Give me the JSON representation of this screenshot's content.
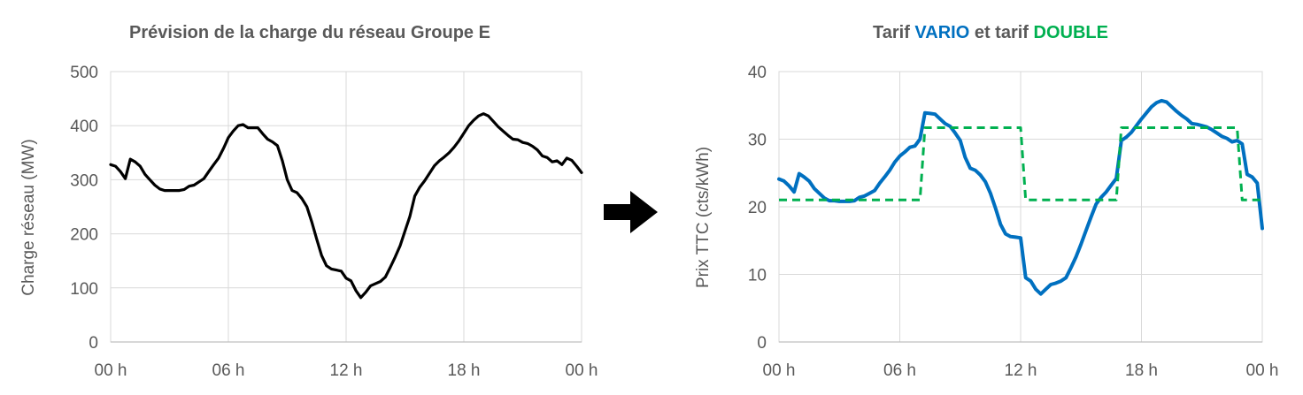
{
  "colors": {
    "load": "#000000",
    "vario": "#0070c0",
    "double": "#00b050",
    "text": "#595959",
    "arrow": "#000000"
  },
  "arrow_icon": "right-arrow-icon",
  "chart_data": [
    {
      "type": "line",
      "title": "Prévision de la charge du réseau Groupe E",
      "xlabel": "",
      "ylabel": "Charge réseau (MW)",
      "xlim": [
        0,
        24
      ],
      "ylim": [
        0,
        500
      ],
      "xticks": [
        0,
        6,
        12,
        18,
        24
      ],
      "xtick_labels": [
        "00 h",
        "06 h",
        "12 h",
        "18 h",
        "00 h"
      ],
      "yticks": [
        0,
        100,
        200,
        300,
        400,
        500
      ],
      "ytick_labels": [
        "0",
        "100",
        "200",
        "300",
        "400",
        "500"
      ],
      "series": [
        {
          "x": [
            0,
            0.25,
            0.5,
            0.75,
            1,
            1.25,
            1.5,
            1.75,
            2,
            2.25,
            2.5,
            2.75,
            3,
            3.25,
            3.5,
            3.75,
            4,
            4.25,
            4.5,
            4.75,
            5,
            5.25,
            5.5,
            5.75,
            6,
            6.25,
            6.5,
            6.75,
            7,
            7.25,
            7.5,
            7.75,
            8,
            8.25,
            8.5,
            8.75,
            9,
            9.25,
            9.5,
            9.75,
            10,
            10.25,
            10.5,
            10.75,
            11,
            11.25,
            11.5,
            11.75,
            12,
            12.25,
            12.5,
            12.75,
            13,
            13.25,
            13.5,
            13.75,
            14,
            14.25,
            14.5,
            14.75,
            15,
            15.25,
            15.5,
            15.75,
            16,
            16.25,
            16.5,
            16.75,
            17,
            17.25,
            17.5,
            17.75,
            18,
            18.25,
            18.5,
            18.75,
            19,
            19.25,
            19.5,
            19.75,
            20,
            20.25,
            20.5,
            20.75,
            21,
            21.25,
            21.5,
            21.75,
            22,
            22.25,
            22.5,
            22.75,
            23,
            23.25,
            23.5,
            23.75,
            24
          ],
          "y": [
            328,
            325,
            315,
            302,
            338,
            333,
            325,
            310,
            300,
            290,
            283,
            280,
            280,
            280,
            280,
            282,
            288,
            290,
            296,
            302,
            315,
            328,
            340,
            358,
            378,
            390,
            400,
            402,
            396,
            396,
            396,
            385,
            375,
            370,
            363,
            335,
            300,
            280,
            276,
            265,
            250,
            222,
            190,
            160,
            141,
            135,
            133,
            131,
            118,
            113,
            95,
            82,
            92,
            104,
            108,
            112,
            120,
            138,
            157,
            178,
            205,
            232,
            270,
            286,
            298,
            312,
            326,
            335,
            342,
            350,
            360,
            372,
            386,
            400,
            410,
            418,
            422,
            418,
            408,
            398,
            390,
            382,
            375,
            374,
            369,
            367,
            362,
            355,
            344,
            341,
            333,
            335,
            328,
            340,
            336,
            325,
            313
          ]
        }
      ]
    },
    {
      "type": "line",
      "title": "Tarif VARIO et tarif DOUBLE",
      "title_parts": [
        {
          "text": "Tarif ",
          "color": "#595959"
        },
        {
          "text": "VARIO",
          "color": "#0070c0"
        },
        {
          "text": " et tarif ",
          "color": "#595959"
        },
        {
          "text": "DOUBLE",
          "color": "#00b050"
        }
      ],
      "xlabel": "",
      "ylabel": "Prix TTC (cts/kWh)",
      "xlim": [
        0,
        24
      ],
      "ylim": [
        0,
        40
      ],
      "xticks": [
        0,
        6,
        12,
        18,
        24
      ],
      "xtick_labels": [
        "00 h",
        "06 h",
        "12 h",
        "18 h",
        "00 h"
      ],
      "yticks": [
        0,
        10,
        20,
        30,
        40
      ],
      "ytick_labels": [
        "0",
        "10",
        "20",
        "30",
        "40"
      ],
      "series": [
        {
          "style": "solid",
          "x": [
            0,
            0.25,
            0.5,
            0.75,
            1,
            1.25,
            1.5,
            1.75,
            2,
            2.25,
            2.5,
            2.75,
            3,
            3.25,
            3.5,
            3.75,
            4,
            4.25,
            4.5,
            4.75,
            5,
            5.25,
            5.5,
            5.75,
            6,
            6.25,
            6.5,
            6.75,
            7,
            7.25,
            7.5,
            7.75,
            8,
            8.25,
            8.5,
            8.75,
            9,
            9.25,
            9.5,
            9.75,
            10,
            10.25,
            10.5,
            10.75,
            11,
            11.25,
            11.5,
            11.75,
            12,
            12.25,
            12.5,
            12.75,
            13,
            13.25,
            13.5,
            13.75,
            14,
            14.25,
            14.5,
            14.75,
            15,
            15.25,
            15.5,
            15.75,
            16,
            16.25,
            16.5,
            16.75,
            17,
            17.25,
            17.5,
            17.75,
            18,
            18.25,
            18.5,
            18.75,
            19,
            19.25,
            19.5,
            19.75,
            20,
            20.25,
            20.5,
            20.75,
            21,
            21.25,
            21.5,
            21.75,
            22,
            22.25,
            22.5,
            22.75,
            23,
            23.25,
            23.5,
            23.75,
            24
          ],
          "y": [
            24.1,
            23.8,
            23.1,
            22.2,
            24.9,
            24.4,
            23.8,
            22.7,
            22.0,
            21.3,
            20.9,
            20.9,
            20.8,
            20.8,
            20.8,
            20.9,
            21.4,
            21.6,
            22.0,
            22.4,
            23.5,
            24.4,
            25.4,
            26.6,
            27.5,
            28.1,
            28.8,
            29.0,
            30.0,
            33.9,
            33.8,
            33.7,
            33.0,
            32.3,
            31.9,
            30.9,
            29.8,
            27.3,
            25.7,
            25.4,
            24.7,
            23.7,
            22.0,
            19.8,
            17.4,
            16.0,
            15.6,
            15.5,
            15.4,
            9.5,
            9.0,
            7.8,
            7.1,
            7.8,
            8.5,
            8.7,
            9.0,
            9.5,
            11.0,
            12.6,
            14.5,
            16.5,
            18.5,
            20.4,
            21.4,
            22.2,
            23.2,
            24.2,
            29.8,
            30.3,
            31.0,
            32.0,
            33.0,
            33.9,
            34.8,
            35.4,
            35.7,
            35.5,
            34.8,
            34.1,
            33.5,
            33.0,
            32.3,
            32.2,
            32.0,
            31.8,
            31.4,
            30.9,
            30.4,
            30.1,
            29.6,
            29.8,
            29.3,
            24.8,
            24.4,
            23.5,
            16.8
          ]
        },
        {
          "style": "dashed",
          "x": [
            0,
            7,
            7.25,
            12,
            12.25,
            16.75,
            17,
            22.75,
            23,
            24
          ],
          "y": [
            21,
            21,
            31.7,
            31.7,
            21,
            21,
            31.7,
            31.7,
            21,
            21
          ]
        }
      ]
    }
  ]
}
